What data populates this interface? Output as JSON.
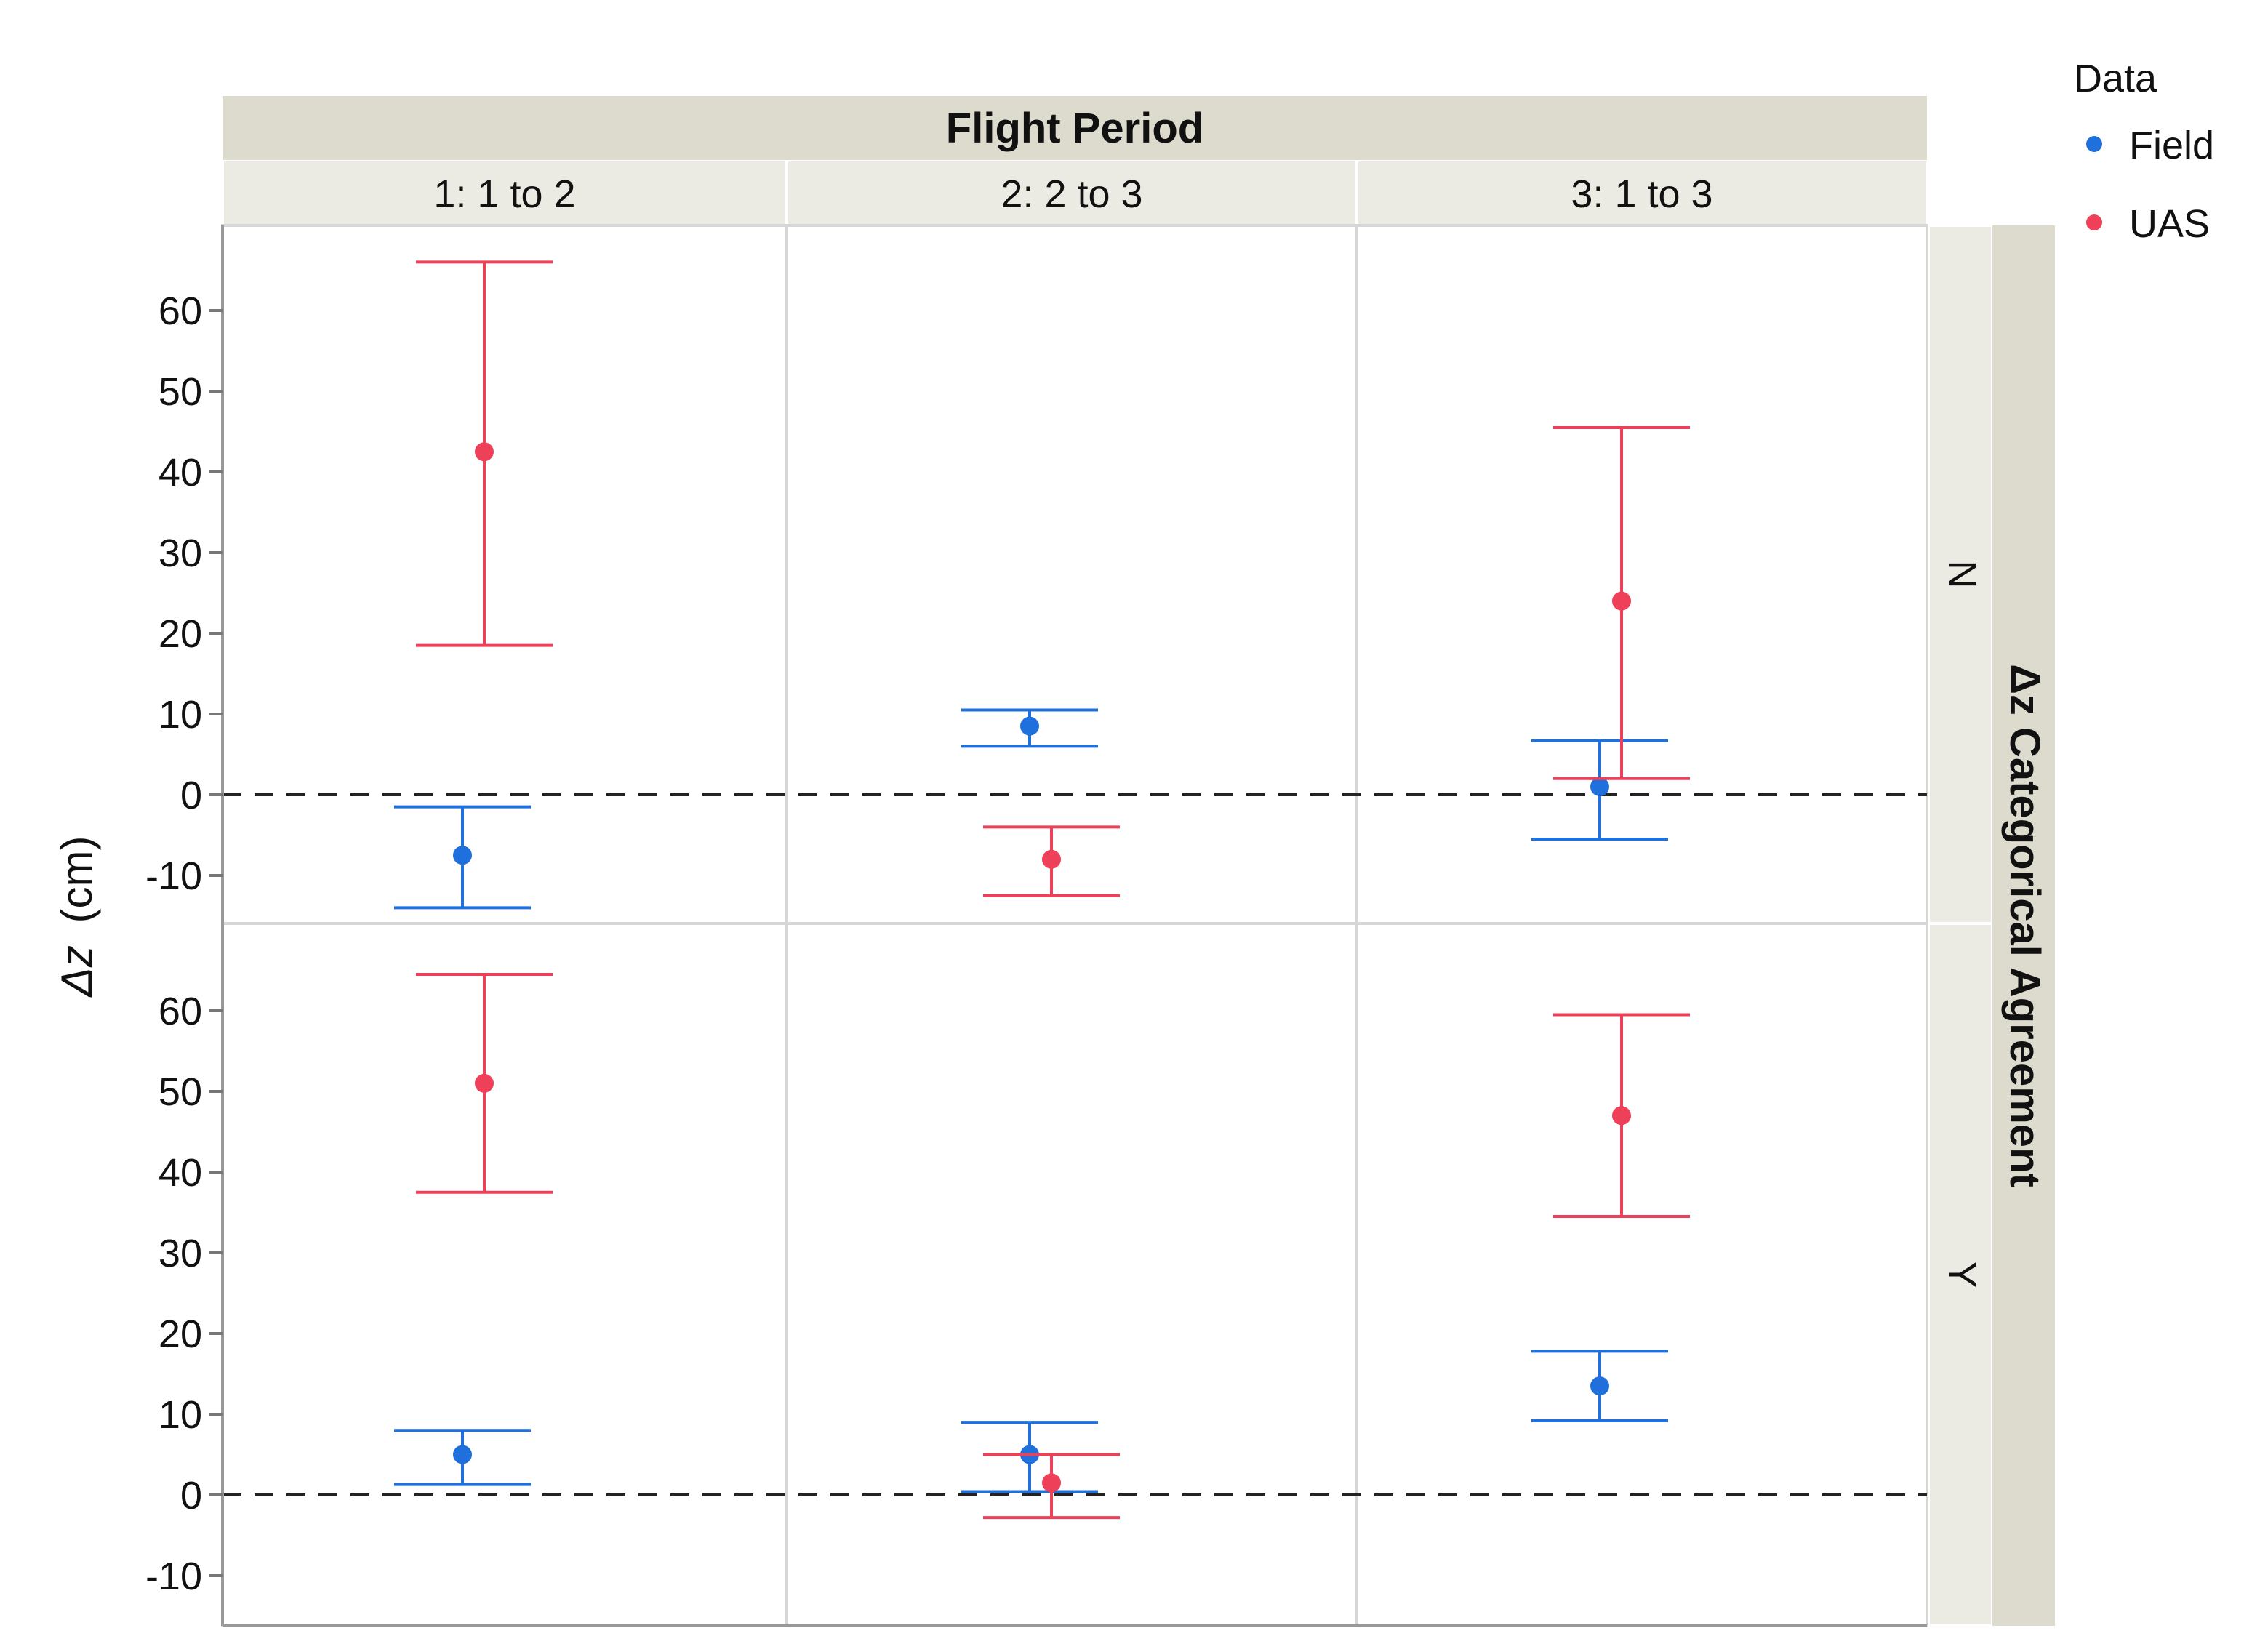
{
  "chart_data": {
    "type": "scatter",
    "subtype": "point-with-error-bars, faceted",
    "column_facet_title": "Flight Period",
    "column_facets": [
      "1: 1 to 2",
      "2: 2 to 3",
      "3: 1 to 3"
    ],
    "row_facet_title": "Δz Categorical Agreement",
    "row_facets": [
      "N",
      "Y"
    ],
    "ylabel_main": "Δz",
    "ylabel_unit": "(cm)",
    "yticks": [
      "60",
      "50",
      "40",
      "30",
      "20",
      "10",
      "0",
      "-10"
    ],
    "ylim": [
      -16,
      70
    ],
    "reference_line": 0,
    "legend_title": "Data",
    "legend_position": "top-right",
    "series": [
      {
        "name": "Field",
        "color": "#1f6fdc",
        "points": [
          {
            "col": 0,
            "row": 0,
            "y": -7.5,
            "lo": -14,
            "hi": -1.5
          },
          {
            "col": 1,
            "row": 0,
            "y": 8.5,
            "lo": 6,
            "hi": 10.5
          },
          {
            "col": 2,
            "row": 0,
            "y": 1,
            "lo": -5.5,
            "hi": 6.7
          },
          {
            "col": 0,
            "row": 1,
            "y": 5,
            "lo": 1.3,
            "hi": 8
          },
          {
            "col": 1,
            "row": 1,
            "y": 5,
            "lo": 0.4,
            "hi": 9
          },
          {
            "col": 2,
            "row": 1,
            "y": 13.5,
            "lo": 9.2,
            "hi": 17.8
          }
        ]
      },
      {
        "name": "UAS",
        "color": "#ee4058",
        "points": [
          {
            "col": 0,
            "row": 0,
            "y": 42.5,
            "lo": 18.5,
            "hi": 66
          },
          {
            "col": 1,
            "row": 0,
            "y": -8,
            "lo": -12.5,
            "hi": -4
          },
          {
            "col": 2,
            "row": 0,
            "y": 24,
            "lo": 2,
            "hi": 45.5
          },
          {
            "col": 0,
            "row": 1,
            "y": 51,
            "lo": 37.5,
            "hi": 64.5
          },
          {
            "col": 1,
            "row": 1,
            "y": 1.5,
            "lo": -2.8,
            "hi": 5
          },
          {
            "col": 2,
            "row": 1,
            "y": 47,
            "lo": 34.5,
            "hi": 59.5
          }
        ]
      }
    ]
  }
}
